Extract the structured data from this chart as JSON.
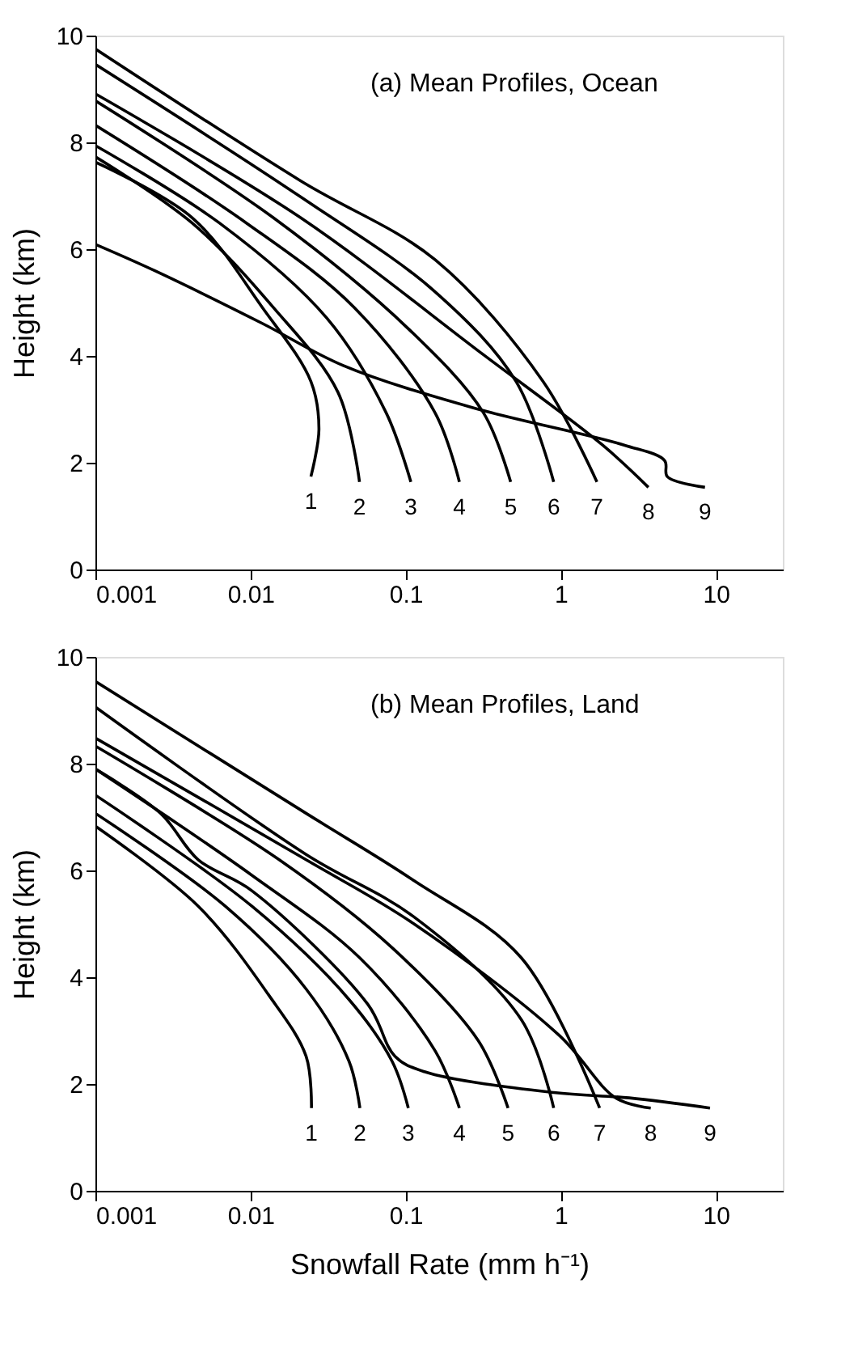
{
  "chart_data": [
    {
      "type": "line",
      "title": "(a)   Mean Profiles, Ocean",
      "ylabel": "Height (km)",
      "log": "x",
      "xlim": [
        0.001,
        27
      ],
      "xticks": [
        0.001,
        0.01,
        0.1,
        1,
        10
      ],
      "ylim": [
        0,
        10
      ],
      "yticks": [
        0,
        2,
        4,
        6,
        8,
        10
      ],
      "grid": false,
      "marker": "none",
      "line_style": "solid",
      "series": [
        {
          "name": "1",
          "color": "#000000",
          "x": [
            0.001,
            0.0042,
            0.0119,
            0.0245,
            0.0276,
            0.0245
          ],
          "values": [
            7.63,
            6.59,
            4.91,
            3.52,
            2.63,
            1.74
          ]
        },
        {
          "name": "2",
          "color": "#000000",
          "x": [
            0.001,
            0.0042,
            0.014,
            0.0366,
            0.0504
          ],
          "values": [
            7.73,
            6.49,
            4.91,
            3.32,
            1.64
          ]
        },
        {
          "name": "3",
          "color": "#000000",
          "x": [
            0.001,
            0.0063,
            0.031,
            0.075,
            0.108
          ],
          "values": [
            7.94,
            6.49,
            4.71,
            2.93,
            1.64
          ]
        },
        {
          "name": "4",
          "color": "#000000",
          "x": [
            0.001,
            0.0094,
            0.0465,
            0.155,
            0.222
          ],
          "values": [
            8.32,
            6.49,
            4.91,
            2.93,
            1.64
          ]
        },
        {
          "name": "5",
          "color": "#000000",
          "x": [
            0.001,
            0.014,
            0.104,
            0.318,
            0.475
          ],
          "values": [
            8.78,
            6.59,
            4.51,
            2.93,
            1.64
          ]
        },
        {
          "name": "6",
          "color": "#000000",
          "x": [
            0.001,
            0.021,
            0.155,
            0.515,
            0.9
          ],
          "values": [
            9.46,
            6.98,
            5.2,
            3.52,
            1.64
          ]
        },
        {
          "name": "7",
          "color": "#000000",
          "x": [
            0.001,
            0.021,
            0.155,
            0.77,
            1.71
          ],
          "values": [
            9.75,
            7.28,
            5.8,
            3.52,
            1.64
          ]
        },
        {
          "name": "8",
          "color": "#000000",
          "x": [
            0.001,
            0.021,
            0.318,
            1.86,
            3.67
          ],
          "values": [
            8.91,
            6.59,
            4.02,
            2.33,
            1.54
          ]
        },
        {
          "name": "9",
          "color": "#000000",
          "x": [
            0.001,
            0.0024,
            0.0119,
            0.0396,
            0.271,
            2.56,
            4.67,
            4.86,
            8.5
          ],
          "values": [
            6.09,
            5.6,
            4.61,
            3.82,
            3.03,
            2.33,
            2.04,
            1.74,
            1.54
          ]
        }
      ]
    },
    {
      "type": "line",
      "title": "(b)   Mean Profiles, Land",
      "xlabel": "Snowfall Rate (mm h⁻¹)",
      "ylabel": "Height (km)",
      "log": "x",
      "xlim": [
        0.001,
        27
      ],
      "xticks": [
        0.001,
        0.01,
        0.1,
        1,
        10
      ],
      "ylim": [
        0,
        10
      ],
      "yticks": [
        0,
        2,
        4,
        6,
        8,
        10
      ],
      "grid": false,
      "marker": "none",
      "line_style": "solid",
      "series": [
        {
          "name": "1",
          "color": "#000000",
          "x": [
            0.001,
            0.0046,
            0.013,
            0.0228,
            0.0247
          ],
          "values": [
            6.83,
            5.33,
            3.68,
            2.52,
            1.55
          ]
        },
        {
          "name": "2",
          "color": "#000000",
          "x": [
            0.001,
            0.00687,
            0.0228,
            0.0432,
            0.0507
          ],
          "values": [
            7.07,
            5.33,
            3.78,
            2.42,
            1.55
          ]
        },
        {
          "name": "3",
          "color": "#000000",
          "x": [
            0.001,
            0.0102,
            0.0432,
            0.0819,
            0.104
          ],
          "values": [
            7.41,
            5.33,
            3.58,
            2.42,
            1.55
          ]
        },
        {
          "name": "4",
          "color": "#000000",
          "x": [
            0.001,
            0.0102,
            0.0507,
            0.155,
            0.222
          ],
          "values": [
            7.9,
            5.91,
            4.36,
            2.62,
            1.55
          ]
        },
        {
          "name": "5",
          "color": "#000000",
          "x": [
            0.001,
            0.0153,
            0.0819,
            0.294,
            0.457
          ],
          "values": [
            8.33,
            6.2,
            4.55,
            2.81,
            1.55
          ]
        },
        {
          "name": "6",
          "color": "#000000",
          "x": [
            0.001,
            0.0228,
            0.113,
            0.558,
            0.9
          ],
          "values": [
            9.06,
            6.3,
            5.13,
            3.2,
            1.55
          ]
        },
        {
          "name": "7",
          "color": "#000000",
          "x": [
            0.001,
            0.0228,
            0.113,
            0.558,
            1.78
          ],
          "values": [
            9.54,
            7.07,
            5.81,
            4.36,
            1.55
          ]
        },
        {
          "name": "8",
          "color": "#000000",
          "x": [
            0.001,
            0.0228,
            0.113,
            0.977,
            2.26,
            3.8
          ],
          "values": [
            8.48,
            6.2,
            5.0,
            2.91,
            1.74,
            1.55
          ]
        },
        {
          "name": "9",
          "color": "#000000",
          "x": [
            0.001,
            0.00263,
            0.0046,
            0.0102,
            0.0571,
            0.0853,
            0.132,
            0.9,
            2.76,
            9.16
          ],
          "values": [
            7.9,
            7.07,
            6.2,
            5.62,
            3.49,
            2.52,
            2.23,
            1.84,
            1.74,
            1.55
          ]
        }
      ]
    }
  ]
}
